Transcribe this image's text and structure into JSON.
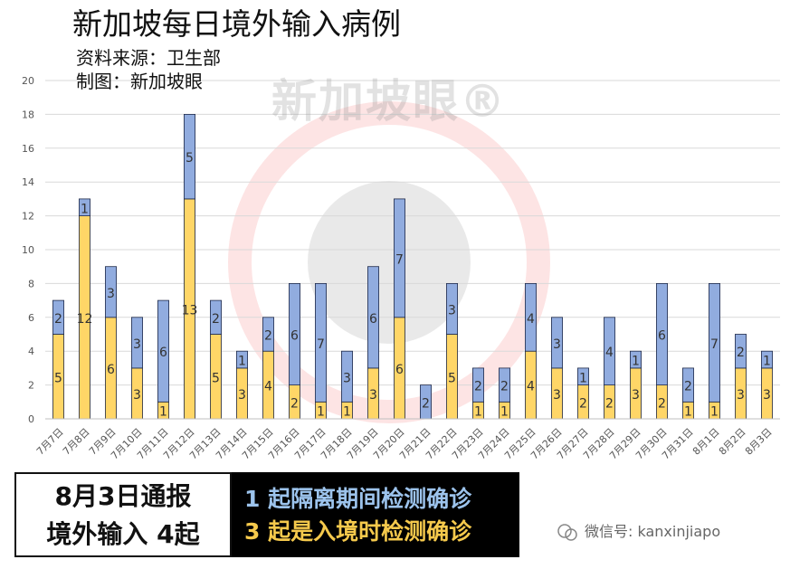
{
  "title": "新加坡每日境外输入病例",
  "source_line": "资料来源：卫生部",
  "credit_line": "制图：新加坡眼",
  "watermark": "新加坡眼®",
  "summary_box": {
    "line1": "8月3日通报",
    "line2": "境外输入 4起"
  },
  "detail_box": {
    "line1": "1 起隔离期间检测确诊",
    "line2": "3 起是入境时检测确诊"
  },
  "wechat_label": "微信号: kanxinjiapo",
  "colors": {
    "arrival": "#ffd667",
    "quarantine": "#91acdf",
    "bar_stroke": "#1f2a4a",
    "grid": "#d9d9d9",
    "watermark_red": "#f26c6c"
  },
  "chart_data": {
    "type": "bar",
    "stacked": true,
    "categories": [
      "7月7日",
      "7月8日",
      "7月9日",
      "7月10日",
      "7月11日",
      "7月12日",
      "7月13日",
      "7月14日",
      "7月15日",
      "7月16日",
      "7月17日",
      "7月18日",
      "7月19日",
      "7月20日",
      "7月21日",
      "7月22日",
      "7月23日",
      "7月24日",
      "7月25日",
      "7月26日",
      "7月27日",
      "7月28日",
      "7月29日",
      "7月30日",
      "7月31日",
      "8月1日",
      "8月2日",
      "8月3日"
    ],
    "series": [
      {
        "values": [
          5,
          12,
          6,
          3,
          1,
          13,
          5,
          3,
          4,
          2,
          1,
          1,
          3,
          6,
          0,
          5,
          1,
          1,
          4,
          3,
          2,
          2,
          3,
          2,
          1,
          1,
          3,
          3
        ]
      },
      {
        "values": [
          2,
          1,
          3,
          3,
          6,
          5,
          2,
          1,
          2,
          6,
          7,
          3,
          6,
          7,
          2,
          3,
          2,
          2,
          4,
          3,
          1,
          4,
          1,
          6,
          2,
          7,
          2,
          1
        ]
      }
    ],
    "ylim": [
      0,
      20
    ],
    "yticks": [
      0,
      2,
      4,
      6,
      8,
      10,
      12,
      14,
      16,
      18,
      20
    ],
    "grid": true,
    "legend": "none"
  }
}
